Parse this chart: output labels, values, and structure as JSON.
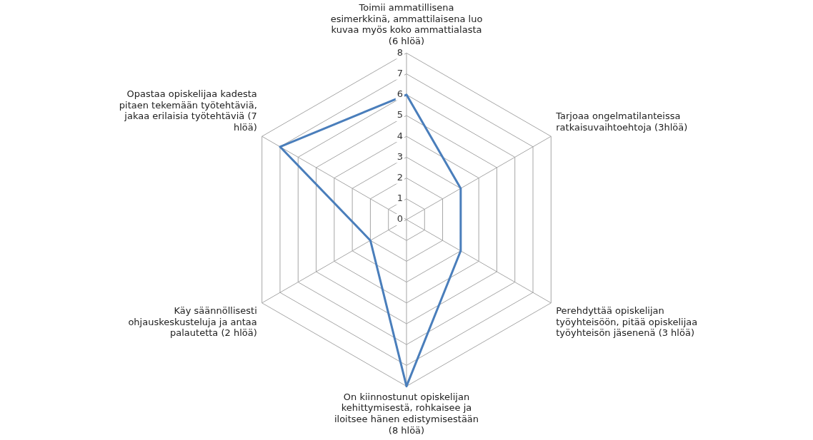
{
  "chart_data": {
    "type": "radar",
    "categories": [
      "Toimii ammatillisena esimerkkinä, ammattilaisena luo kuvaa myös koko ammattialasta (6 hlöä)",
      "Tarjoaa ongelmatilanteissa ratkaisuvaihtoehtoja (3hlöä)",
      "Perehdyttää opiskelijan työyhteisöön, pitää opiskelijaa työyhteisön jäsenenä (3 hlöä)",
      "On kiinnostunut opiskelijan kehittymisestä, rohkaisee ja iloitsee hänen edistymisestään (8 hlöä)",
      "Käy säännöllisesti ohjauskeskusteluja ja antaa palautetta (2 hlöä)",
      "Opastaa opiskelijaa kadesta pitaen tekemään työtehtäviä, jakaa erilaisia työtehtäviä (7 hlöä)"
    ],
    "series": [
      {
        "color": "#4a7ebb",
        "values": [
          6,
          3,
          3,
          8,
          2,
          7
        ]
      }
    ],
    "ylim": [
      0,
      8
    ],
    "yticks": [
      0,
      1,
      2,
      3,
      4,
      5,
      6,
      7,
      8
    ],
    "grid": true,
    "legend": false,
    "marker": "none"
  }
}
